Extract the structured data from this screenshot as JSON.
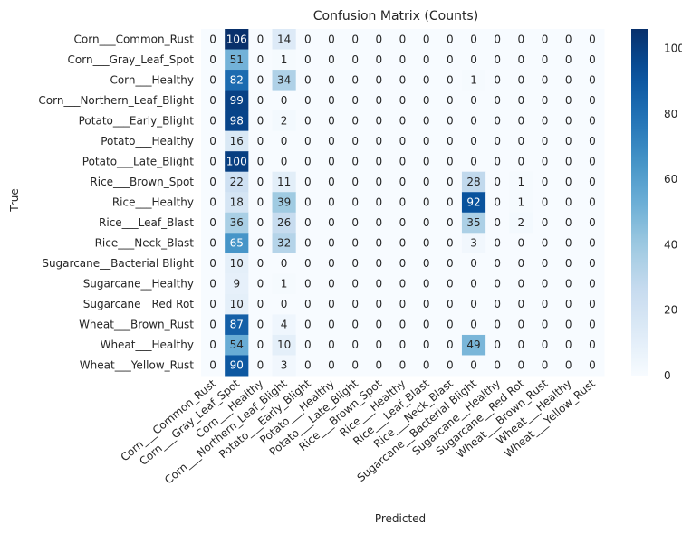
{
  "chart_data": {
    "type": "heatmap",
    "title": "Confusion Matrix (Counts)",
    "xlabel": "Predicted",
    "ylabel": "True",
    "labels": [
      "Corn___Common_Rust",
      "Corn___Gray_Leaf_Spot",
      "Corn___Healthy",
      "Corn___Northern_Leaf_Blight",
      "Potato___Early_Blight",
      "Potato___Healthy",
      "Potato___Late_Blight",
      "Rice___Brown_Spot",
      "Rice___Healthy",
      "Rice___Leaf_Blast",
      "Rice___Neck_Blast",
      "Sugarcane__Bacterial Blight",
      "Sugarcane__Healthy",
      "Sugarcane__Red Rot",
      "Wheat___Brown_Rust",
      "Wheat___Healthy",
      "Wheat___Yellow_Rust"
    ],
    "matrix": [
      [
        0,
        106,
        0,
        14,
        0,
        0,
        0,
        0,
        0,
        0,
        0,
        0,
        0,
        0,
        0,
        0,
        0
      ],
      [
        0,
        51,
        0,
        1,
        0,
        0,
        0,
        0,
        0,
        0,
        0,
        0,
        0,
        0,
        0,
        0,
        0
      ],
      [
        0,
        82,
        0,
        34,
        0,
        0,
        0,
        0,
        0,
        0,
        0,
        1,
        0,
        0,
        0,
        0,
        0
      ],
      [
        0,
        99,
        0,
        0,
        0,
        0,
        0,
        0,
        0,
        0,
        0,
        0,
        0,
        0,
        0,
        0,
        0
      ],
      [
        0,
        98,
        0,
        2,
        0,
        0,
        0,
        0,
        0,
        0,
        0,
        0,
        0,
        0,
        0,
        0,
        0
      ],
      [
        0,
        16,
        0,
        0,
        0,
        0,
        0,
        0,
        0,
        0,
        0,
        0,
        0,
        0,
        0,
        0,
        0
      ],
      [
        0,
        100,
        0,
        0,
        0,
        0,
        0,
        0,
        0,
        0,
        0,
        0,
        0,
        0,
        0,
        0,
        0
      ],
      [
        0,
        22,
        0,
        11,
        0,
        0,
        0,
        0,
        0,
        0,
        0,
        28,
        0,
        1,
        0,
        0,
        0
      ],
      [
        0,
        18,
        0,
        39,
        0,
        0,
        0,
        0,
        0,
        0,
        0,
        92,
        0,
        1,
        0,
        0,
        0
      ],
      [
        0,
        36,
        0,
        26,
        0,
        0,
        0,
        0,
        0,
        0,
        0,
        35,
        0,
        2,
        0,
        0,
        0
      ],
      [
        0,
        65,
        0,
        32,
        0,
        0,
        0,
        0,
        0,
        0,
        0,
        3,
        0,
        0,
        0,
        0,
        0
      ],
      [
        0,
        10,
        0,
        0,
        0,
        0,
        0,
        0,
        0,
        0,
        0,
        0,
        0,
        0,
        0,
        0,
        0
      ],
      [
        0,
        9,
        0,
        1,
        0,
        0,
        0,
        0,
        0,
        0,
        0,
        0,
        0,
        0,
        0,
        0,
        0
      ],
      [
        0,
        10,
        0,
        0,
        0,
        0,
        0,
        0,
        0,
        0,
        0,
        0,
        0,
        0,
        0,
        0,
        0
      ],
      [
        0,
        87,
        0,
        4,
        0,
        0,
        0,
        0,
        0,
        0,
        0,
        0,
        0,
        0,
        0,
        0,
        0
      ],
      [
        0,
        54,
        0,
        10,
        0,
        0,
        0,
        0,
        0,
        0,
        0,
        49,
        0,
        0,
        0,
        0,
        0
      ],
      [
        0,
        90,
        0,
        3,
        0,
        0,
        0,
        0,
        0,
        0,
        0,
        0,
        0,
        0,
        0,
        0,
        0
      ]
    ],
    "vmin": 0,
    "vmax": 106,
    "colormap": "Blues",
    "colorbar_ticks": [
      0,
      20,
      40,
      60,
      80,
      100
    ],
    "grid": false
  }
}
